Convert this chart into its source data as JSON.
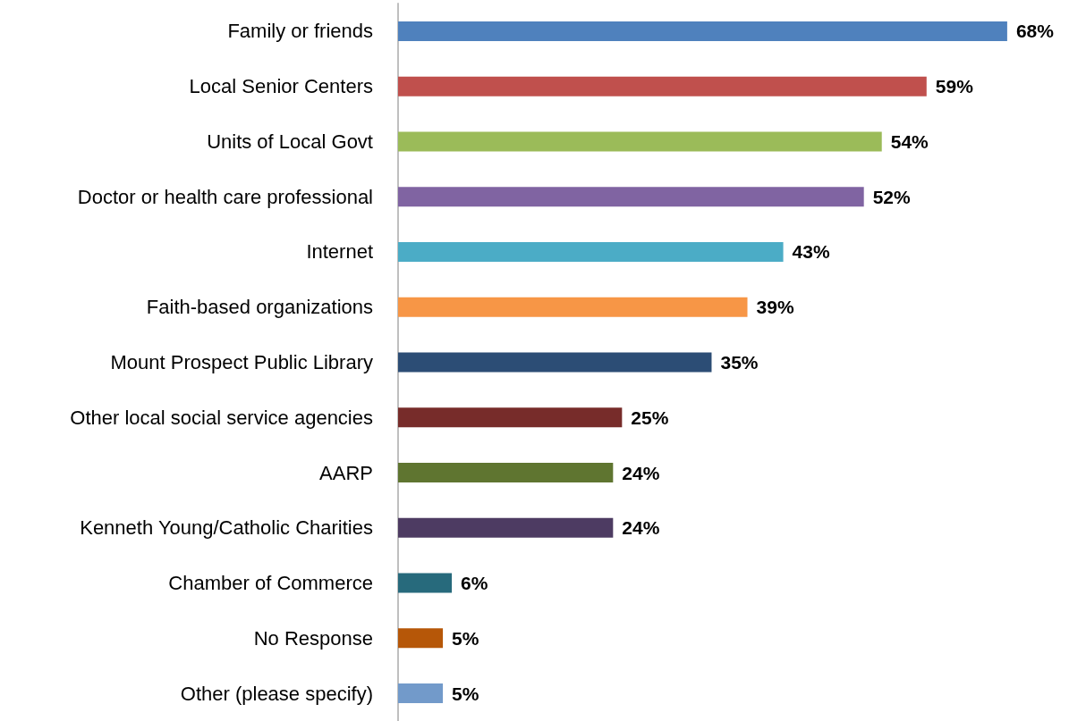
{
  "chart_data": {
    "type": "bar",
    "orientation": "horizontal",
    "categories": [
      "Family or friends",
      "Local Senior Centers",
      "Units of Local Govt",
      "Doctor or health care professional",
      "Internet",
      "Faith-based organizations",
      "Mount Prospect Public Library",
      "Other local social service agencies",
      "AARP",
      "Kenneth Young/Catholic Charities",
      "Chamber of Commerce",
      "No Response",
      "Other (please specify)"
    ],
    "values": [
      68,
      59,
      54,
      52,
      43,
      39,
      35,
      25,
      24,
      24,
      6,
      5,
      5
    ],
    "value_labels": [
      "68%",
      "59%",
      "54%",
      "52%",
      "43%",
      "39%",
      "35%",
      "25%",
      "24%",
      "24%",
      "6%",
      "5%",
      "5%"
    ],
    "colors": [
      "#4f81bd",
      "#c0504d",
      "#9bbb59",
      "#8064a2",
      "#4bacc6",
      "#f79646",
      "#2c4d75",
      "#772c2a",
      "#5f7530",
      "#4d3b62",
      "#276a7c",
      "#b65708",
      "#729aca"
    ]
  }
}
